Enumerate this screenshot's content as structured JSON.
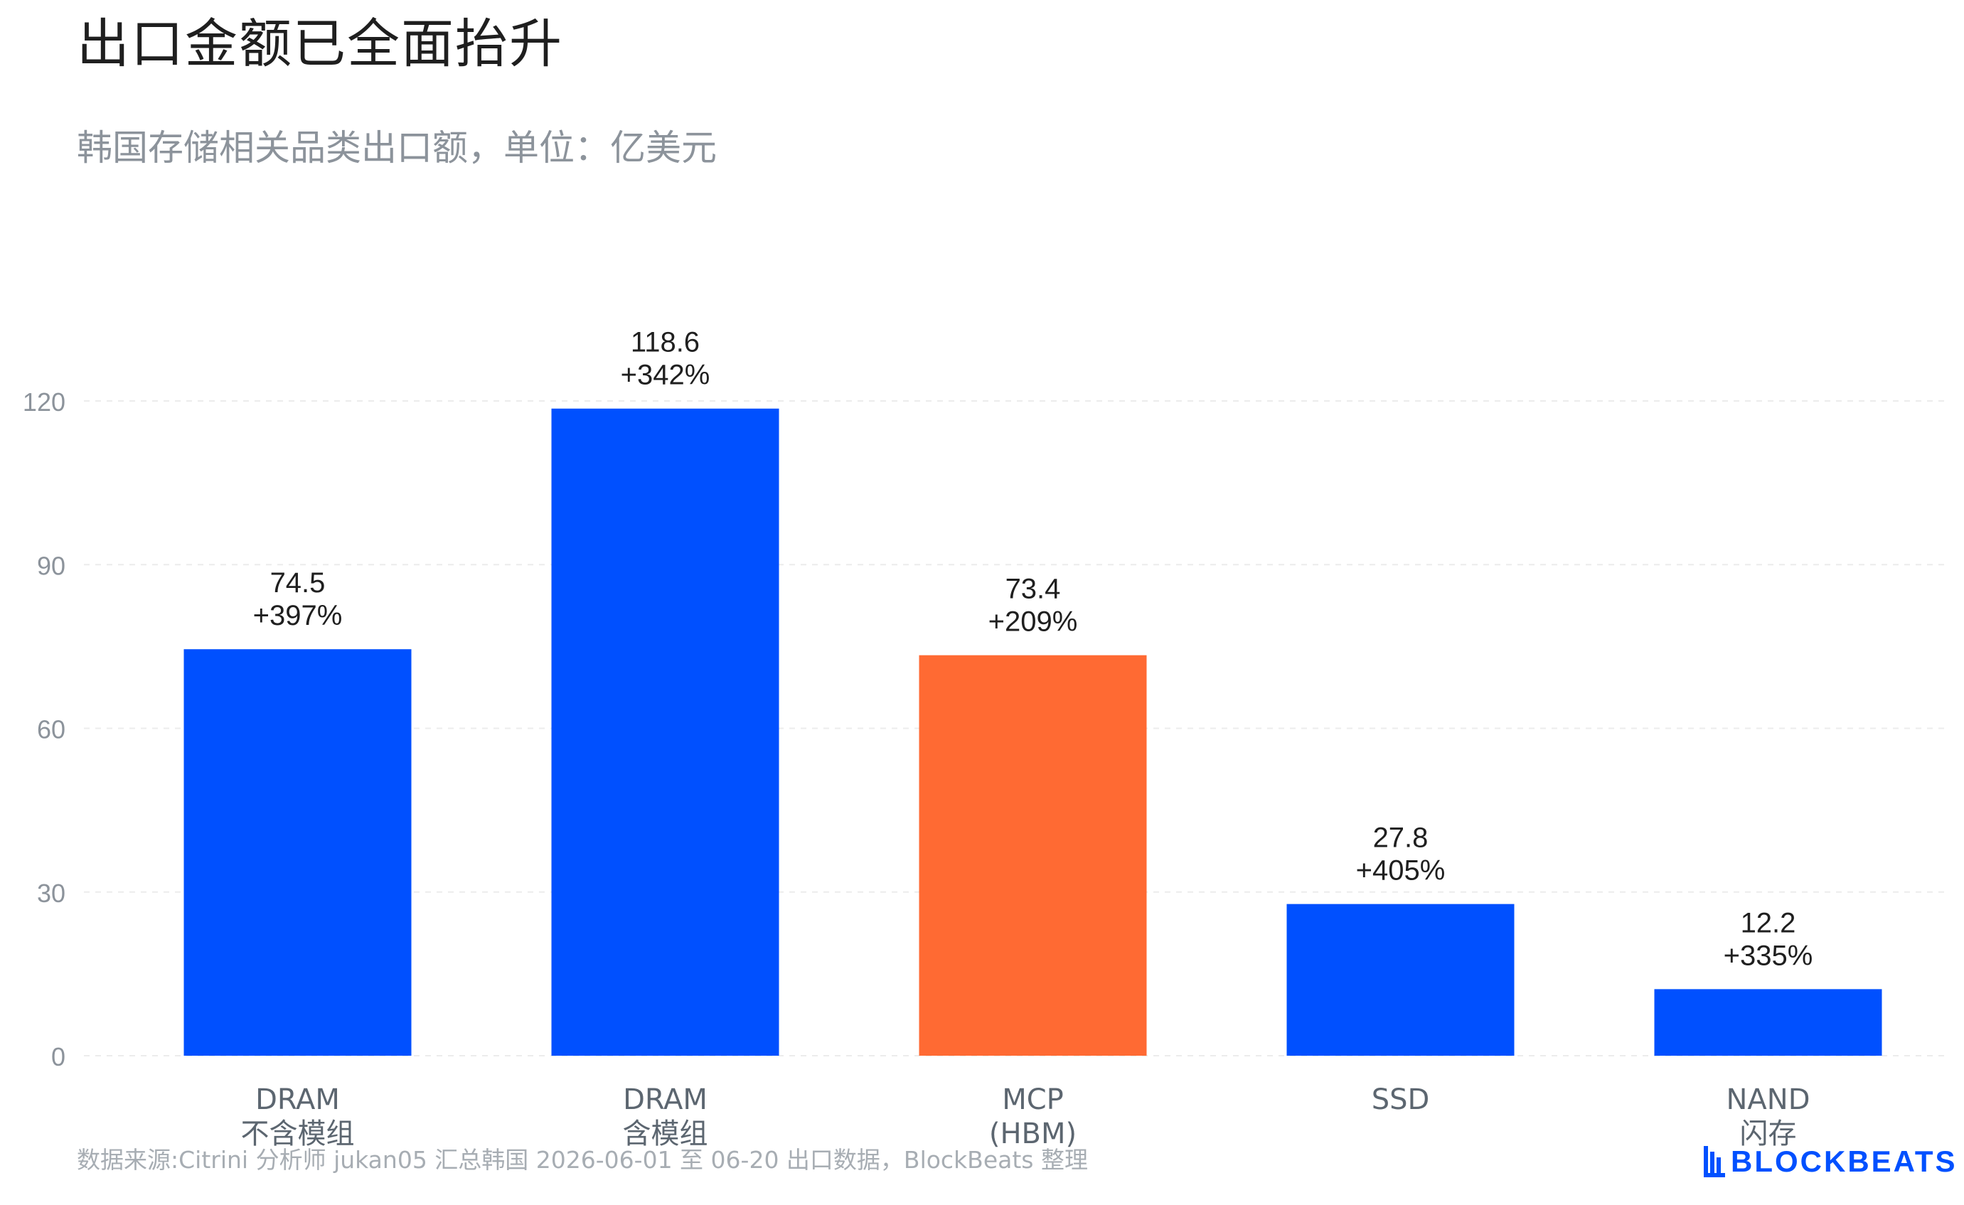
{
  "title": "出口金额已全面抬升",
  "subtitle": "韩国存储相关品类出口额，单位：亿美元",
  "source": "数据来源:Citrini 分析师 jukan05 汇总韩国 2026-06-01 至 06-20 出口数据，BlockBeats 整理",
  "brand": {
    "name": "BLOCKBEATS",
    "color": "#0050ff",
    "icon": "blockbeats-logo-icon"
  },
  "colors": {
    "primary": "#0050ff",
    "highlight": "#ff6a33",
    "grid": "#ececec",
    "tick": "#8c939b",
    "label": "#1f1f1f",
    "category": "#5c6670"
  },
  "chart_data": {
    "type": "bar",
    "categories": [
      [
        "DRAM",
        "不含模组"
      ],
      [
        "DRAM",
        "含模组"
      ],
      [
        "MCP",
        "(HBM)"
      ],
      [
        "SSD"
      ],
      [
        "NAND",
        "闪存"
      ]
    ],
    "values": [
      74.5,
      118.6,
      73.4,
      27.8,
      12.2
    ],
    "value_labels": [
      "74.5",
      "118.6",
      "73.4",
      "27.8",
      "12.2"
    ],
    "growth_labels": [
      "+397%",
      "+342%",
      "+209%",
      "+405%",
      "+335%"
    ],
    "bar_colors": [
      "#0050ff",
      "#0050ff",
      "#ff6a33",
      "#0050ff",
      "#0050ff"
    ],
    "yticks": [
      0,
      30,
      60,
      90,
      120
    ],
    "ylim": [
      0,
      132
    ],
    "grid": true,
    "legend": false
  }
}
